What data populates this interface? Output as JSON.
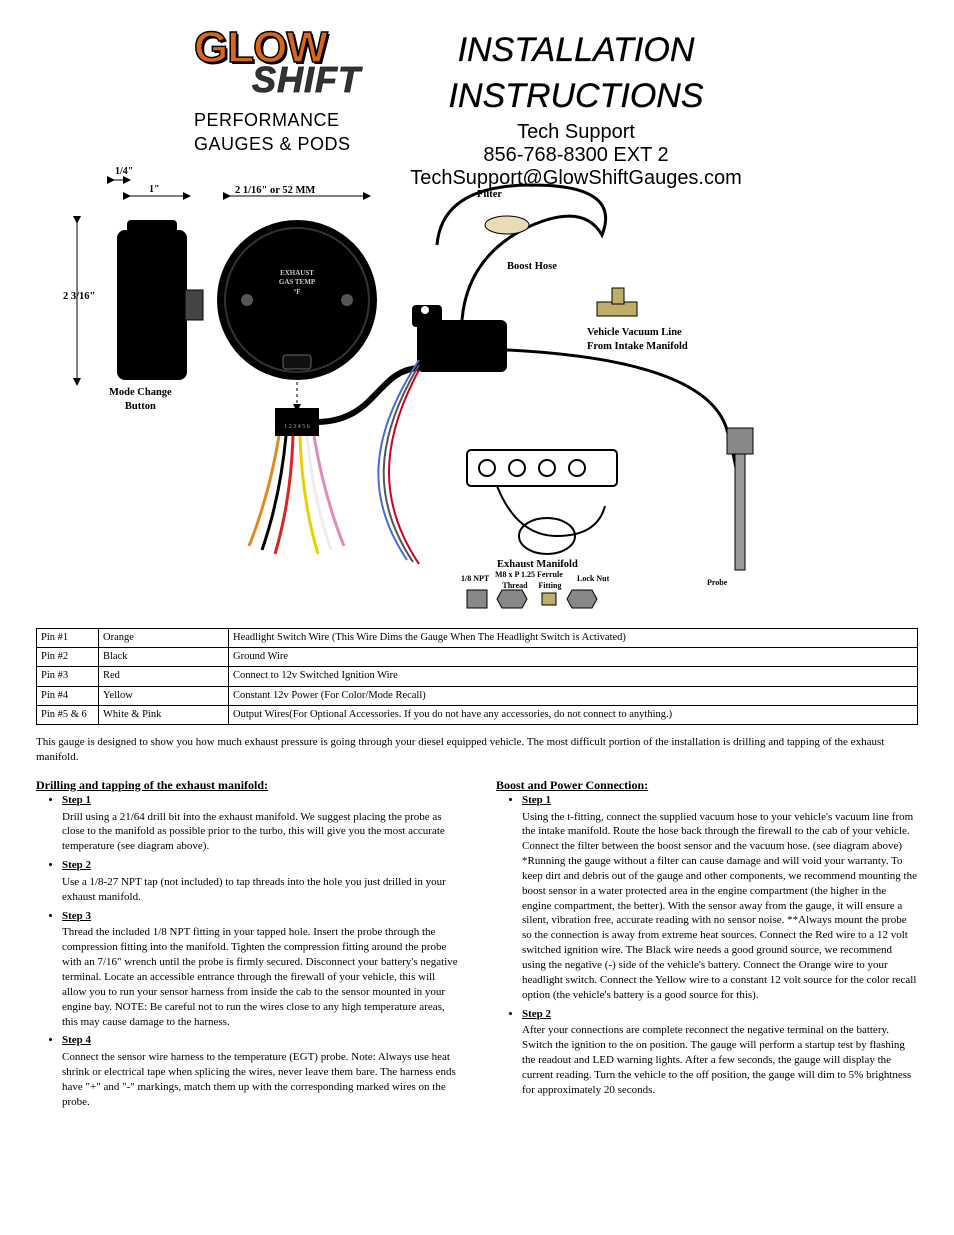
{
  "header": {
    "logo_main": "GLOW",
    "logo_sub": "SHIFT",
    "logo_tagline": "PERFORMANCE GAUGES & PODS",
    "install_title": "INSTALLATION INSTRUCTIONS",
    "tech_support_label": "Tech Support",
    "phone": "856-768-8300 EXT 2",
    "email": "TechSupport@GlowShiftGauges.com"
  },
  "diagram": {
    "dim_top_left": "1/4\"",
    "dim_one_inch": "1\"",
    "dim_width": "2 1/16\" or 52 MM",
    "dim_height": "2 3/16\"",
    "mode_button": "Mode Change\nButton",
    "gauge_face": "EXHAUST\nGAS TEMP\n°F",
    "filter": "Filter",
    "boost_hose": "Boost Hose",
    "vacuum_line": "Vehicle Vacuum Line\nFrom Intake Manifold",
    "exhaust_manifold": "Exhaust Manifold",
    "lbl_npt": "1/8 NPT",
    "lbl_m8": "M8 x P 1.25\nThread",
    "lbl_ferrule": "Ferrule\nFitting",
    "lbl_locknut": "Lock Nut",
    "lbl_probe": "Probe",
    "connector_nums": "1 2 3 4 5 6"
  },
  "table": {
    "rows": [
      [
        "Pin #1",
        "Orange",
        "Headlight Switch Wire (This Wire Dims the Gauge When The Headlight Switch is Activated)"
      ],
      [
        "Pin #2",
        "Black",
        "Ground Wire"
      ],
      [
        "Pin #3",
        "Red",
        "Connect to 12v Switched Ignition Wire"
      ],
      [
        "Pin #4",
        "Yellow",
        "Constant 12v Power (For Color/Mode Recall)"
      ],
      [
        "Pin #5 & 6",
        "White & Pink",
        "Output Wires(For Optional Accessories. If you do not have any accessories, do not connect to anything.)"
      ]
    ]
  },
  "intro": "This gauge is designed to show you how much exhaust pressure is going through your diesel equipped vehicle. The most difficult portion of the installation is drilling and tapping of the exhaust manifold.",
  "sections": {
    "drill_tap_title": "Drilling and tapping of the exhaust manifold:",
    "steps_l": [
      {
        "t": "Step 1",
        "b": "Drill using a 21/64 drill bit into the exhaust manifold. We suggest placing the probe as close to the manifold as possible prior to the turbo, this will give you the most accurate temperature (see diagram above)."
      },
      {
        "t": "Step 2",
        "b": "Use a 1/8-27 NPT tap (not included) to tap threads into the hole you just drilled in your exhaust manifold."
      },
      {
        "t": "Step 3",
        "b": "Thread the included 1/8 NPT fitting in your tapped hole. Insert the probe through the compression fitting into the manifold. Tighten the compression fitting around the probe with an 7/16\" wrench until the probe is firmly secured. Disconnect your battery's negative terminal. Locate an accessible entrance through the firewall of your vehicle, this will allow you to run your sensor harness from inside the cab to the sensor mounted in your engine bay. NOTE: Be careful not to run the wires close to any high temperature areas, this may cause damage to the harness."
      },
      {
        "t": "Step 4",
        "b": "Connect the sensor wire harness to the temperature (EGT) probe. Note: Always use heat shrink or electrical tape when splicing the wires, never leave them bare. The harness ends have \"+\" and \"-\" markings, match them up with the corresponding marked wires on the probe."
      }
    ],
    "boost_title": "Boost and Power Connection:",
    "steps_r": [
      {
        "t": "Step 1",
        "b": "Using the t-fitting, connect the supplied vacuum hose to your vehicle's vacuum line from the intake manifold. Route the hose back through the firewall to the cab of your vehicle. Connect the filter between the boost sensor and the vacuum hose. (see diagram above) *Running the gauge without a filter can cause damage and will void your warranty. To keep dirt and debris out of the gauge and other components, we recommend mounting the boost sensor in a water protected area in the engine compartment (the higher in the engine compartment, the better). With the sensor away from the gauge, it will ensure a silent, vibration free, accurate reading with no sensor noise. **Always mount the probe so the connection is away from extreme heat sources. Connect the Red wire to a 12 volt switched ignition wire. The Black wire needs a good ground source, we recommend using the negative (-) side of the vehicle's battery. Connect the Orange wire to your headlight switch. Connect the Yellow wire to a constant 12 volt source for the color recall option (the vehicle's battery is a good source for this)."
      },
      {
        "t": "Step 2",
        "b": "After your connections are complete reconnect the negative terminal on the battery. Switch the ignition to the on position. The gauge will perform a startup test by flashing the readout and LED warning lights. After a few seconds, the gauge will display the current reading. Turn the vehicle to the off position, the gauge will dim to 5% brightness for approximately 20 seconds."
      }
    ]
  }
}
